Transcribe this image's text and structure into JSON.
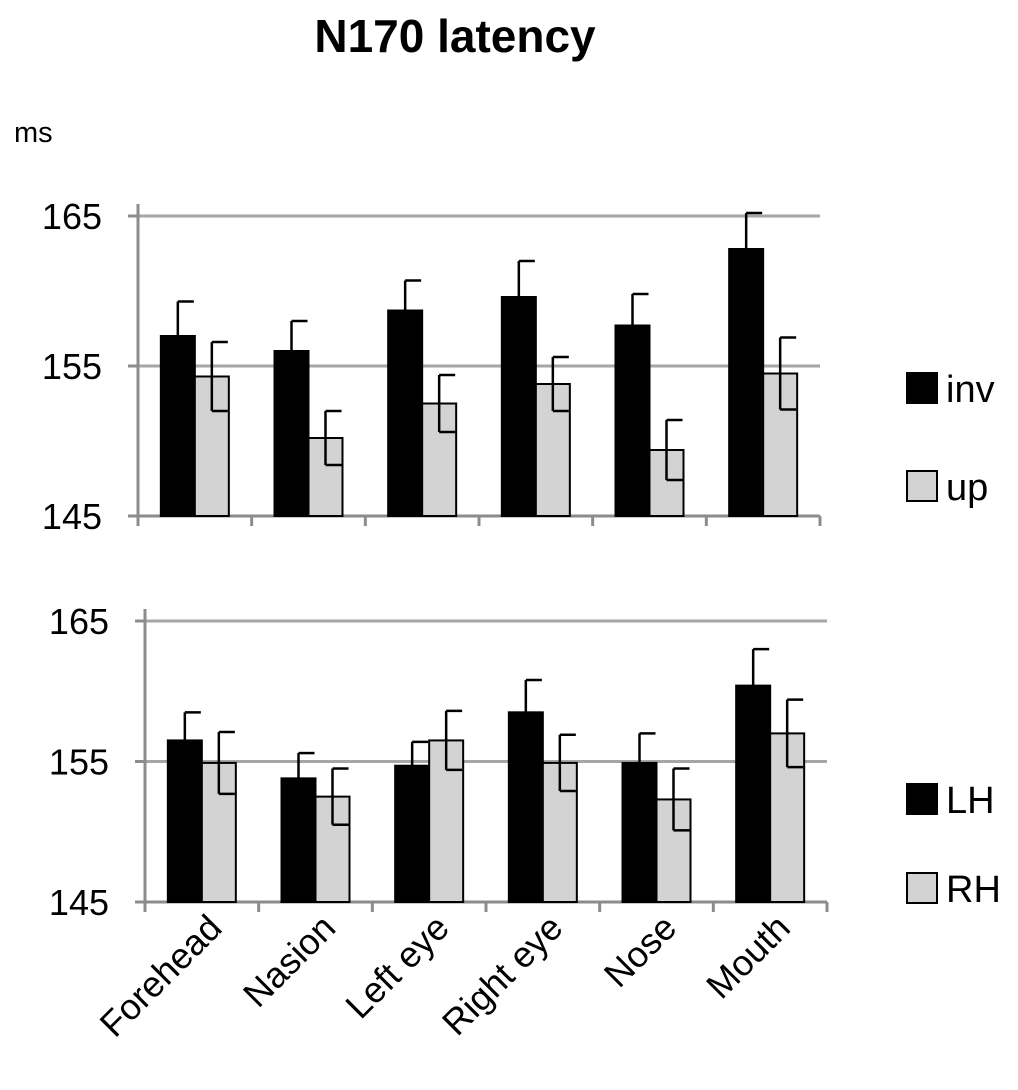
{
  "figure": {
    "title": "N170 latency"
  },
  "chart_data": [
    {
      "type": "bar",
      "title": "N170 latency",
      "ylabel": "ms",
      "xlabel": "",
      "categories": [
        "Forehead",
        "Nasion",
        "Left eye",
        "Right eye",
        "Nose",
        "Mouth"
      ],
      "series": [
        {
          "name": "inv",
          "color": "#000000",
          "values": [
            157.0,
            156.0,
            158.7,
            159.6,
            157.7,
            162.8
          ],
          "errors": [
            2.3,
            2.0,
            2.0,
            2.4,
            2.1,
            2.4
          ]
        },
        {
          "name": "up",
          "color": "#d3d3d3",
          "values": [
            154.3,
            150.2,
            152.5,
            153.8,
            149.4,
            154.5
          ],
          "errors": [
            2.3,
            1.8,
            1.9,
            1.8,
            2.0,
            2.4
          ]
        }
      ],
      "ylim": [
        145,
        165
      ],
      "yticks": [
        "145",
        "155",
        "165"
      ],
      "grid": true,
      "legend_position": "right"
    },
    {
      "type": "bar",
      "title": "",
      "ylabel": "",
      "xlabel": "",
      "categories": [
        "Forehead",
        "Nasion",
        "Left eye",
        "Right eye",
        "Nose",
        "Mouth"
      ],
      "series": [
        {
          "name": "LH",
          "color": "#000000",
          "values": [
            156.5,
            153.8,
            154.7,
            158.5,
            154.9,
            160.4
          ],
          "errors": [
            2.0,
            1.8,
            1.7,
            2.3,
            2.1,
            2.6
          ]
        },
        {
          "name": "RH",
          "color": "#d3d3d3",
          "values": [
            154.9,
            152.5,
            156.5,
            154.9,
            152.3,
            157.0
          ],
          "errors": [
            2.2,
            2.0,
            2.1,
            2.0,
            2.2,
            2.4
          ]
        }
      ],
      "ylim": [
        145,
        165
      ],
      "yticks": [
        "145",
        "155",
        "165"
      ],
      "grid": true,
      "legend_position": "right"
    }
  ]
}
